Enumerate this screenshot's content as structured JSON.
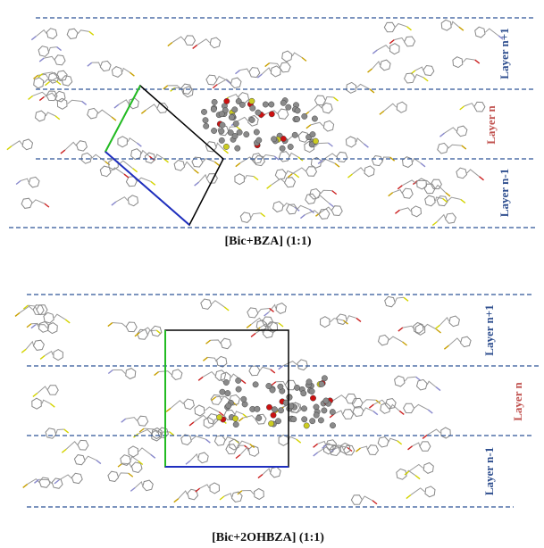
{
  "panels": [
    {
      "layers": [
        "Layer n+1",
        "Layer n",
        "Layer n-1"
      ],
      "caption": "[Bic+BZA] (1:1)"
    },
    {
      "layers": [
        "Layer n+1",
        "Layer n",
        "Layer n-1"
      ],
      "caption": "[Bic+2OHBZA] (1:1)"
    }
  ]
}
